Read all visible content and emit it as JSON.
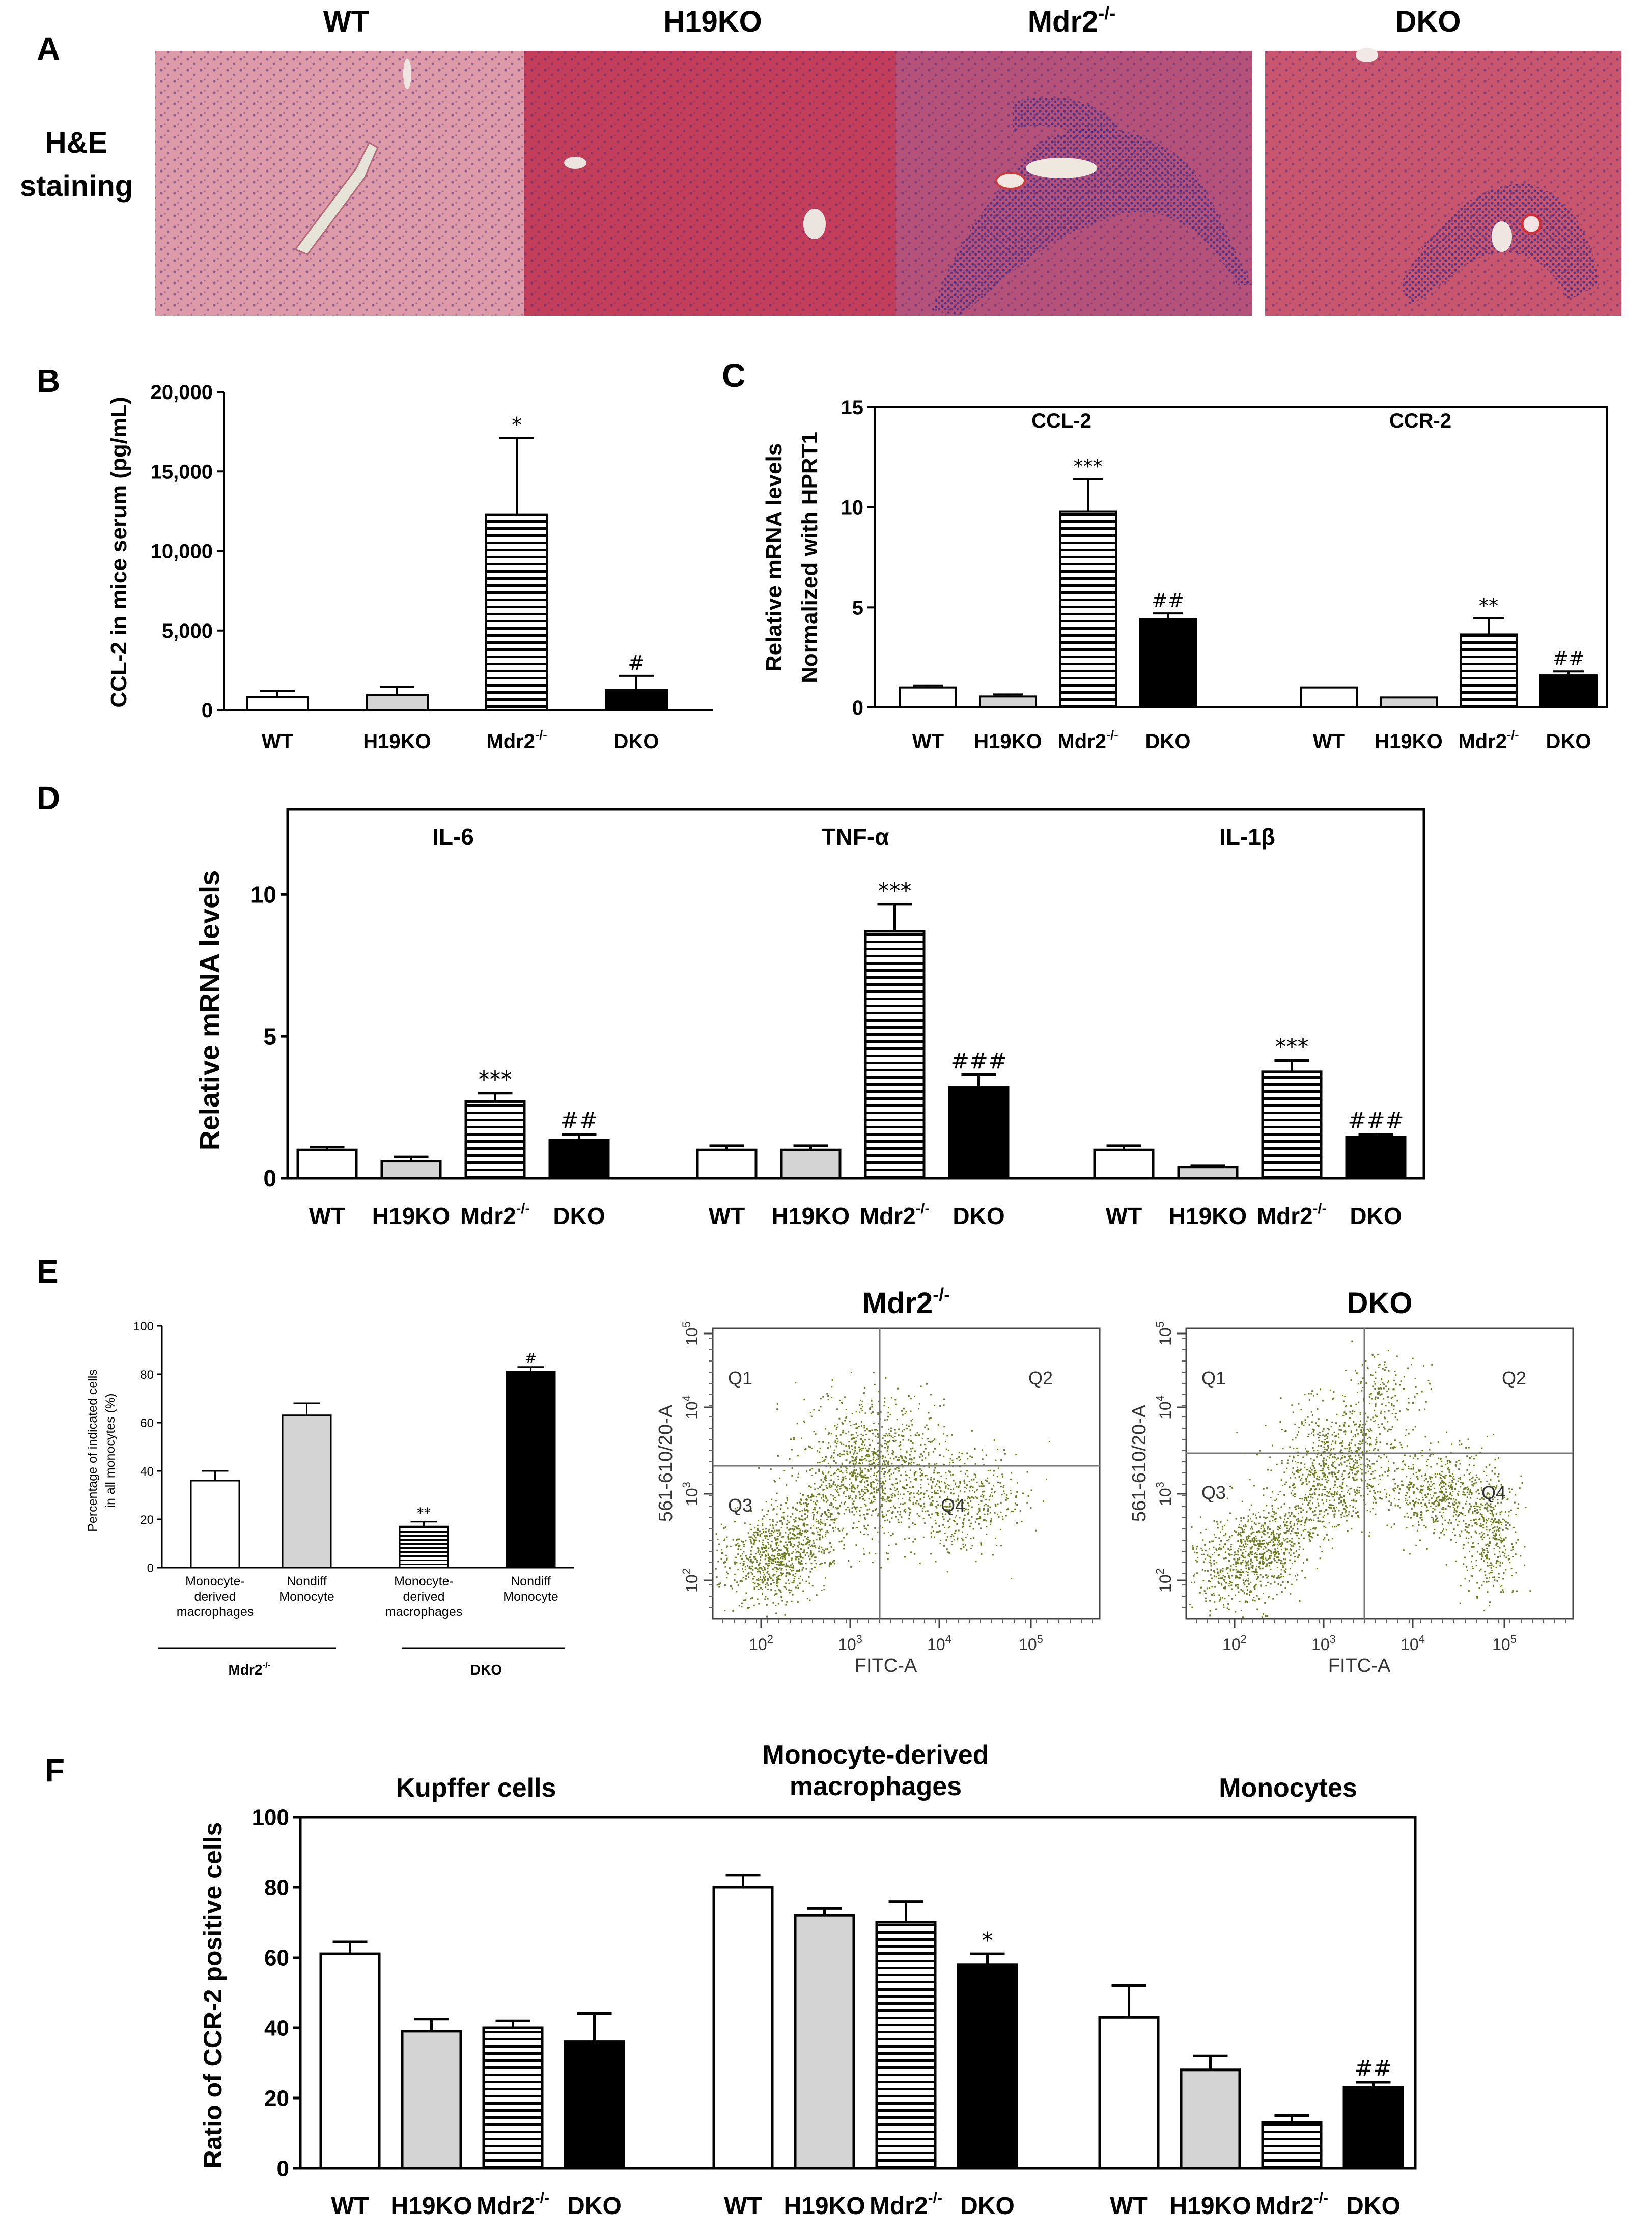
{
  "panel_letters": [
    "A",
    "B",
    "C",
    "D",
    "E",
    "F"
  ],
  "panel_a": {
    "row_label_line1": "H&E",
    "row_label_line2": "staining",
    "columns": [
      {
        "title": "WT",
        "color": "#dd9aa8"
      },
      {
        "title": "H19KO",
        "color": "#c23e5a"
      },
      {
        "title": "Mdr2",
        "title_sup": "-/-",
        "color": "#b5527a"
      },
      {
        "title": "DKO",
        "color": "#c8566e"
      }
    ]
  },
  "panel_e_flow": {
    "plots": [
      {
        "title": "Mdr2",
        "title_sup": "-/-",
        "xlabel": "FITC-A",
        "ylabel": "561-610/20-A",
        "quadrants": [
          "Q1",
          "Q2",
          "Q3",
          "Q4"
        ]
      },
      {
        "title": "DKO",
        "xlabel": "FITC-A",
        "ylabel": "561-610/20-A",
        "quadrants": [
          "Q1",
          "Q2",
          "Q3",
          "Q4"
        ]
      }
    ],
    "x_ticks": [
      "10",
      "10",
      "10",
      "10"
    ],
    "x_tick_exp": [
      "2",
      "3",
      "4",
      "5"
    ],
    "y_ticks": [
      "10",
      "10",
      "10",
      "10"
    ],
    "y_tick_exp": [
      "2",
      "3",
      "4",
      "5"
    ],
    "dot_color": "#6b7a1c"
  },
  "chart_data": [
    {
      "id": "B",
      "type": "bar",
      "categories": [
        "WT",
        "H19KO",
        "Mdr2",
        "DKO"
      ],
      "category_sup": [
        "",
        "",
        "-/-",
        ""
      ],
      "values": [
        800,
        950,
        12300,
        1250
      ],
      "errors": [
        400,
        500,
        4800,
        900
      ],
      "annotations": [
        "",
        "",
        "*",
        "#"
      ],
      "fills": [
        "white",
        "gray",
        "hstripe",
        "black"
      ],
      "ylabel": "CCL-2 in mice serum (pg/mL)",
      "ylim": [
        0,
        20000
      ],
      "yticks": [
        "0",
        "5,000",
        "10,000",
        "15,000",
        "20,000"
      ],
      "ytick_values": [
        0,
        5000,
        10000,
        15000,
        20000
      ]
    },
    {
      "id": "C",
      "type": "bar",
      "groups": [
        "CCL-2",
        "CCR-2"
      ],
      "categories": [
        "WT",
        "H19KO",
        "Mdr2",
        "DKO"
      ],
      "category_sup": [
        "",
        "",
        "-/-",
        ""
      ],
      "series": [
        {
          "group": "CCL-2",
          "values": [
            1.0,
            0.55,
            9.8,
            4.4
          ],
          "errors": [
            0.1,
            0.1,
            1.6,
            0.3
          ],
          "annotations": [
            "",
            "",
            "***",
            "##"
          ]
        },
        {
          "group": "CCR-2",
          "values": [
            1.0,
            0.5,
            3.65,
            1.6
          ],
          "errors": [
            0,
            0,
            0.8,
            0.2
          ],
          "annotations": [
            "",
            "",
            "**",
            "##"
          ]
        }
      ],
      "fills": [
        "white",
        "gray",
        "hstripe",
        "black"
      ],
      "ylabel_line1": "Relative mRNA levels",
      "ylabel_line2": "Normalized with HPRT1",
      "ylim": [
        0,
        15
      ],
      "yticks": [
        "0",
        "5",
        "10",
        "15"
      ],
      "ytick_values": [
        0,
        5,
        10,
        15
      ]
    },
    {
      "id": "D",
      "type": "bar",
      "groups": [
        "IL-6",
        "TNF-α",
        "IL-1β"
      ],
      "categories": [
        "WT",
        "H19KO",
        "Mdr2",
        "DKO"
      ],
      "category_sup": [
        "",
        "",
        "-/-",
        ""
      ],
      "series": [
        {
          "group": "IL-6",
          "values": [
            1.0,
            0.6,
            2.7,
            1.35
          ],
          "errors": [
            0.1,
            0.15,
            0.3,
            0.2
          ],
          "annotations": [
            "",
            "",
            "***",
            "##"
          ]
        },
        {
          "group": "TNF-α",
          "values": [
            1.0,
            1.0,
            8.7,
            3.2
          ],
          "errors": [
            0.15,
            0.15,
            0.95,
            0.45
          ],
          "annotations": [
            "",
            "",
            "***",
            "###"
          ]
        },
        {
          "group": "IL-1β",
          "values": [
            1.0,
            0.4,
            3.75,
            1.45
          ],
          "errors": [
            0.15,
            0.05,
            0.4,
            0.1
          ],
          "annotations": [
            "",
            "",
            "***",
            "###"
          ]
        }
      ],
      "fills": [
        "white",
        "gray",
        "hstripe",
        "black"
      ],
      "ylabel": "Relative mRNA levels",
      "ylim": [
        0,
        13
      ],
      "yticks": [
        "0",
        "5",
        "10"
      ],
      "ytick_values": [
        0,
        5,
        10
      ]
    },
    {
      "id": "E",
      "type": "bar",
      "categories": [
        "Monocyte-derived macrophages",
        "Nondiff Monocyte",
        "Monocyte-derived macrophages",
        "Nondiff Monocyte"
      ],
      "category_lines": [
        [
          "Monocyte-",
          "derived",
          "macrophages"
        ],
        [
          "Nondiff",
          "Monocyte"
        ],
        [
          "Monocyte-",
          "derived",
          "macrophages"
        ],
        [
          "Nondiff",
          "Monocyte"
        ]
      ],
      "groups": [
        "Mdr2",
        "DKO"
      ],
      "group_sup": [
        "-/-",
        ""
      ],
      "values": [
        36,
        63,
        17,
        81
      ],
      "errors": [
        4,
        5,
        2,
        2
      ],
      "annotations": [
        "",
        "",
        "**",
        "#"
      ],
      "fills": [
        "white",
        "gray",
        "hstripe",
        "black"
      ],
      "ylabel_line1": "Percentage of indicated cells",
      "ylabel_line2": "in all monocytes (%)",
      "ylim": [
        0,
        100
      ],
      "yticks": [
        "0",
        "20",
        "40",
        "60",
        "80",
        "100"
      ],
      "ytick_values": [
        0,
        20,
        40,
        60,
        80,
        100
      ]
    },
    {
      "id": "F",
      "type": "bar",
      "groups": [
        "Kupffer cells",
        "Monocyte-derived macrophages",
        "Monocytes"
      ],
      "group_lines": [
        [
          "Kupffer cells"
        ],
        [
          "Monocyte-derived",
          "macrophages"
        ],
        [
          "Monocytes"
        ]
      ],
      "categories": [
        "WT",
        "H19KO",
        "Mdr2",
        "DKO"
      ],
      "category_sup": [
        "",
        "",
        "-/-",
        ""
      ],
      "series": [
        {
          "group": "Kupffer cells",
          "values": [
            61,
            39,
            40,
            36
          ],
          "errors": [
            3.5,
            3.5,
            2,
            8
          ],
          "annotations": [
            "",
            "",
            "",
            ""
          ]
        },
        {
          "group": "Monocyte-derived macrophages",
          "values": [
            80,
            72,
            70,
            58
          ],
          "errors": [
            3.5,
            2,
            6,
            3
          ],
          "annotations": [
            "",
            "",
            "",
            "*"
          ]
        },
        {
          "group": "Monocytes",
          "values": [
            43,
            28,
            13,
            23
          ],
          "errors": [
            9,
            4,
            2,
            1.5
          ],
          "annotations": [
            "",
            "",
            "",
            "##"
          ]
        }
      ],
      "fills": [
        "white",
        "gray",
        "hstripe",
        "black"
      ],
      "ylabel": "Ratio of CCR-2 positive cells",
      "ylim": [
        0,
        100
      ],
      "yticks": [
        "0",
        "20",
        "40",
        "60",
        "80",
        "100"
      ],
      "ytick_values": [
        0,
        20,
        40,
        60,
        80,
        100
      ]
    }
  ]
}
